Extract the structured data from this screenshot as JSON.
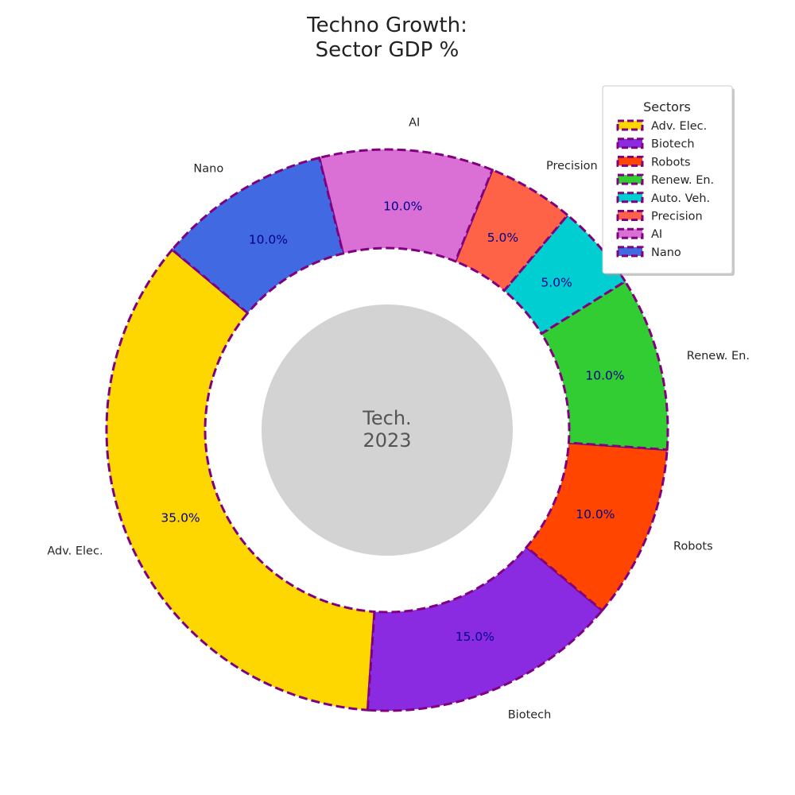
{
  "chart_data": {
    "type": "pie",
    "title_lines": [
      "Techno Growth:",
      "Sector GDP %"
    ],
    "center_label_lines": [
      "Tech.",
      "2023"
    ],
    "legend": {
      "title": "Sectors",
      "placement": "top-right"
    },
    "start_angle_deg": 140,
    "direction": "counterclockwise",
    "donut": true,
    "edge_color": "#800080",
    "edge_style": "dashed",
    "center_circle_color": "#d3d3d3",
    "percent_label_color": "#00008b",
    "slices": [
      {
        "label": "Adv. Elec.",
        "value": 35.0,
        "pct_label": "35.0%",
        "color": "#ffd700"
      },
      {
        "label": "Biotech",
        "value": 15.0,
        "pct_label": "15.0%",
        "color": "#8a2be2"
      },
      {
        "label": "Robots",
        "value": 10.0,
        "pct_label": "10.0%",
        "color": "#ff4500"
      },
      {
        "label": "Renew. En.",
        "value": 10.0,
        "pct_label": "10.0%",
        "color": "#32cd32"
      },
      {
        "label": "Auto. Veh.",
        "value": 5.0,
        "pct_label": "5.0%",
        "color": "#00ced1",
        "outer_label_visible": false
      },
      {
        "label": "Precision",
        "value": 5.0,
        "pct_label": "5.0%",
        "color": "#ff6347"
      },
      {
        "label": "AI",
        "value": 10.0,
        "pct_label": "10.0%",
        "color": "#da70d6"
      },
      {
        "label": "Nano",
        "value": 10.0,
        "pct_label": "10.0%",
        "color": "#4169e1"
      }
    ]
  }
}
